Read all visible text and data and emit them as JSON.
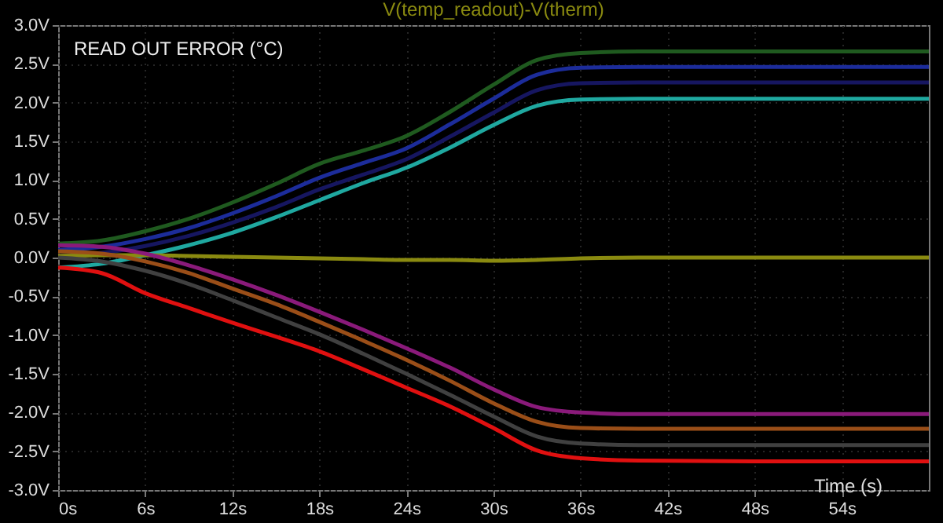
{
  "chart_data": {
    "type": "line",
    "title": "V(temp_readout)-V(therm)",
    "xlabel": "Time (s)",
    "annotations": [
      "READ OUT ERROR (°C)"
    ],
    "x": [
      0,
      3,
      6,
      9,
      12,
      15,
      18,
      21,
      24,
      27,
      30,
      33,
      36,
      40,
      48,
      60
    ],
    "series": [
      {
        "color": "#1f5a1f",
        "values": [
          0.18,
          0.22,
          0.34,
          0.5,
          0.71,
          0.95,
          1.21,
          1.38,
          1.57,
          1.88,
          2.23,
          2.55,
          2.64,
          2.66,
          2.66,
          2.66
        ]
      },
      {
        "color": "#1c2c9a",
        "values": [
          0.1,
          0.14,
          0.24,
          0.38,
          0.57,
          0.79,
          1.03,
          1.22,
          1.41,
          1.72,
          2.05,
          2.36,
          2.45,
          2.46,
          2.46,
          2.46
        ]
      },
      {
        "color": "#161660",
        "values": [
          0.02,
          0.06,
          0.15,
          0.28,
          0.45,
          0.65,
          0.88,
          1.07,
          1.27,
          1.56,
          1.87,
          2.16,
          2.25,
          2.26,
          2.26,
          2.26
        ]
      },
      {
        "color": "#1fa8a0",
        "values": [
          -0.13,
          -0.08,
          0.03,
          0.16,
          0.32,
          0.52,
          0.74,
          0.96,
          1.16,
          1.42,
          1.71,
          1.96,
          2.04,
          2.05,
          2.05,
          2.05
        ]
      },
      {
        "color": "#8a8a10",
        "values": [
          0.02,
          0.03,
          0.03,
          0.02,
          0.01,
          0.0,
          -0.01,
          -0.02,
          -0.03,
          -0.03,
          -0.04,
          -0.03,
          -0.01,
          0,
          0,
          0
        ]
      },
      {
        "color": "#8a1a7a",
        "values": [
          0.16,
          0.14,
          0.05,
          -0.1,
          -0.28,
          -0.48,
          -0.7,
          -0.93,
          -1.17,
          -1.42,
          -1.7,
          -1.93,
          -2.0,
          -2.02,
          -2.02,
          -2.02
        ]
      },
      {
        "color": "#9a4e18",
        "values": [
          0.08,
          0.05,
          -0.05,
          -0.2,
          -0.4,
          -0.6,
          -0.83,
          -1.07,
          -1.32,
          -1.59,
          -1.88,
          -2.12,
          -2.2,
          -2.21,
          -2.21,
          -2.21
        ]
      },
      {
        "color": "#404040",
        "values": [
          0.0,
          -0.05,
          -0.17,
          -0.34,
          -0.55,
          -0.77,
          -0.99,
          -1.24,
          -1.5,
          -1.77,
          -2.05,
          -2.31,
          -2.4,
          -2.42,
          -2.42,
          -2.42
        ]
      },
      {
        "color": "#e01010",
        "values": [
          -0.13,
          -0.2,
          -0.46,
          -0.65,
          -0.84,
          -1.02,
          -1.21,
          -1.44,
          -1.68,
          -1.92,
          -2.2,
          -2.49,
          -2.59,
          -2.62,
          -2.63,
          -2.63
        ]
      }
    ],
    "xlim": [
      0,
      60
    ],
    "xticks": [
      {
        "value": 0,
        "label": "0s"
      },
      {
        "value": 6,
        "label": "6s"
      },
      {
        "value": 12,
        "label": "12s"
      },
      {
        "value": 18,
        "label": "18s"
      },
      {
        "value": 24,
        "label": "24s"
      },
      {
        "value": 30,
        "label": "30s"
      },
      {
        "value": 36,
        "label": "36s"
      },
      {
        "value": 42,
        "label": "42s"
      },
      {
        "value": 48,
        "label": "48s"
      },
      {
        "value": 54,
        "label": "54s"
      }
    ],
    "ylim": [
      -3.0,
      3.0
    ],
    "yticks": [
      {
        "value": -3.0,
        "label": "-3.0V"
      },
      {
        "value": -2.5,
        "label": "-2.5V"
      },
      {
        "value": -2.0,
        "label": "-2.0V"
      },
      {
        "value": -1.5,
        "label": "-1.5V"
      },
      {
        "value": -1.0,
        "label": "-1.0V"
      },
      {
        "value": -0.5,
        "label": "-0.5V"
      },
      {
        "value": 0.0,
        "label": "0.0V"
      },
      {
        "value": 0.5,
        "label": "0.5V"
      },
      {
        "value": 1.0,
        "label": "1.0V"
      },
      {
        "value": 1.5,
        "label": "1.5V"
      },
      {
        "value": 2.0,
        "label": "2.0V"
      },
      {
        "value": 2.5,
        "label": "2.5V"
      },
      {
        "value": 3.0,
        "label": "3.0V"
      }
    ],
    "grid": true,
    "line_style": "solid"
  }
}
